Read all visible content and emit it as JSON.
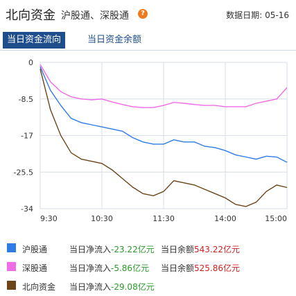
{
  "header": {
    "title": "北向资金",
    "subtitle": "沪股通、深股通",
    "help_glyph": "?",
    "date_label": "数据日期:",
    "date_value": "05-16"
  },
  "tabs": [
    {
      "label": "当日资金流向",
      "active": true
    },
    {
      "label": "当日资金余额",
      "active": false
    }
  ],
  "colors": {
    "sh": "#2f7ce6",
    "sz": "#f06be6",
    "north": "#6b4418",
    "grid": "#d7dde6",
    "tab_active": "#1e4e8c"
  },
  "chart_data": {
    "type": "line",
    "ylim": [
      -34,
      0
    ],
    "yticks": [
      "0",
      "-8.5",
      "-17",
      "-25.5",
      "-34"
    ],
    "xticks": [
      "9:30",
      "10:30",
      "11:30",
      "14:00",
      "15:00"
    ],
    "x": [
      "9:30",
      "9:40",
      "9:50",
      "10:00",
      "10:10",
      "10:20",
      "10:30",
      "10:40",
      "10:50",
      "11:00",
      "11:10",
      "11:20",
      "11:30",
      "13:10",
      "13:20",
      "13:30",
      "13:40",
      "13:50",
      "14:00",
      "14:10",
      "14:20",
      "14:30",
      "14:40",
      "14:50",
      "15:00"
    ],
    "series": [
      {
        "name": "沪股通",
        "values": [
          -1,
          -6.5,
          -10,
          -13,
          -14,
          -14.5,
          -15,
          -15.5,
          -16,
          -17.5,
          -18.5,
          -19,
          -19,
          -18,
          -18.5,
          -18.5,
          -19.5,
          -19.8,
          -20.5,
          -21.5,
          -22,
          -22.5,
          -21.8,
          -22,
          -23.22
        ]
      },
      {
        "name": "深股通",
        "values": [
          -0.5,
          -4.5,
          -6.8,
          -8,
          -8.5,
          -8.7,
          -8.5,
          -9.2,
          -9.8,
          -10.3,
          -10.5,
          -10.5,
          -10,
          -9.3,
          -9.5,
          -9.8,
          -10,
          -10,
          -10.3,
          -10.3,
          -10.3,
          -9.5,
          -9,
          -8.5,
          -5.86
        ]
      },
      {
        "name": "北向资金",
        "values": [
          -1.5,
          -11,
          -17,
          -21,
          -22.5,
          -23,
          -23.5,
          -25,
          -27,
          -29,
          -30.5,
          -31,
          -30,
          -27.5,
          -28,
          -28.5,
          -29.5,
          -30.5,
          -31.5,
          -33,
          -33.5,
          -32.5,
          -30,
          -28.5,
          -29.08
        ]
      }
    ]
  },
  "legend": [
    {
      "name": "沪股通",
      "color": "#2f7ce6",
      "flow_label": "当日净流入",
      "flow_value": "-23.22亿元",
      "balance_label": "当日余额",
      "balance_value": "543.22亿元"
    },
    {
      "name": "深股通",
      "color": "#f06be6",
      "flow_label": "当日净流入",
      "flow_value": "-5.86亿元",
      "balance_label": "当日余额",
      "balance_value": "525.86亿元"
    },
    {
      "name": "北向资金",
      "color": "#6b4418",
      "flow_label": "当日净流入",
      "flow_value": "-29.08亿元",
      "balance_label": "",
      "balance_value": ""
    }
  ]
}
